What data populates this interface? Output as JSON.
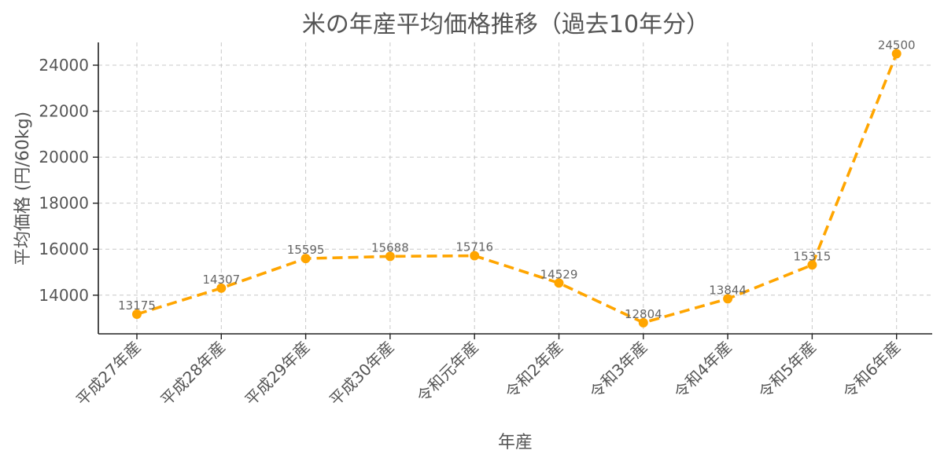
{
  "chart_data": {
    "type": "line",
    "title": "米の年産平均価格推移（過去10年分）",
    "xlabel": "年産",
    "ylabel": "平均価格 (円/60kg)",
    "categories": [
      "平成27年産",
      "平成28年産",
      "平成29年産",
      "平成30年産",
      "令和元年産",
      "令和2年産",
      "令和3年産",
      "令和4年産",
      "令和5年産",
      "令和6年産"
    ],
    "series": [
      {
        "values": [
          13175,
          14307,
          15595,
          15688,
          15716,
          14529,
          12804,
          13844,
          15315,
          24500
        ],
        "color": "#FFA500",
        "line_style": "dashed",
        "marker": "circle"
      }
    ],
    "data_labels": [
      "13175",
      "14307",
      "15595",
      "15688",
      "15716",
      "14529",
      "12804",
      "13844",
      "15315",
      "24500"
    ],
    "yticks": [
      14000,
      16000,
      18000,
      20000,
      22000,
      24000
    ],
    "ytick_labels": [
      "14000",
      "16000",
      "18000",
      "20000",
      "22000",
      "24000"
    ],
    "ylim": [
      12320,
      24990
    ],
    "grid": true
  }
}
